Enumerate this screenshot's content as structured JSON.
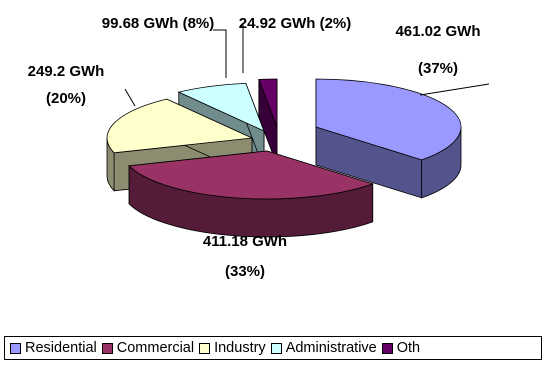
{
  "chart_data": {
    "type": "pie",
    "title": "",
    "unit": "GWh",
    "slices": [
      {
        "name": "Residential",
        "value": 461.02,
        "percent": 37,
        "label_value": "461.02 GWh",
        "label_pct": "(37%)",
        "color": "#9999FF"
      },
      {
        "name": "Commercial",
        "value": 411.18,
        "percent": 33,
        "label_value": "411.18 GWh",
        "label_pct": "(33%)",
        "color": "#993366"
      },
      {
        "name": "Industry",
        "value": 249.2,
        "percent": 20,
        "label_value": "249.2 GWh",
        "label_pct": "(20%)",
        "color": "#FFFFCC"
      },
      {
        "name": "Administrative",
        "value": 99.68,
        "percent": 8,
        "label_value": "99.68 GWh (8%)",
        "label_pct": "",
        "color": "#CCFFFF"
      },
      {
        "name": "Oth",
        "value": 24.92,
        "percent": 2,
        "label_value": "24.92 GWh (2%)",
        "label_pct": "",
        "color": "#660066"
      }
    ],
    "legend_position": "bottom",
    "three_d": true
  }
}
